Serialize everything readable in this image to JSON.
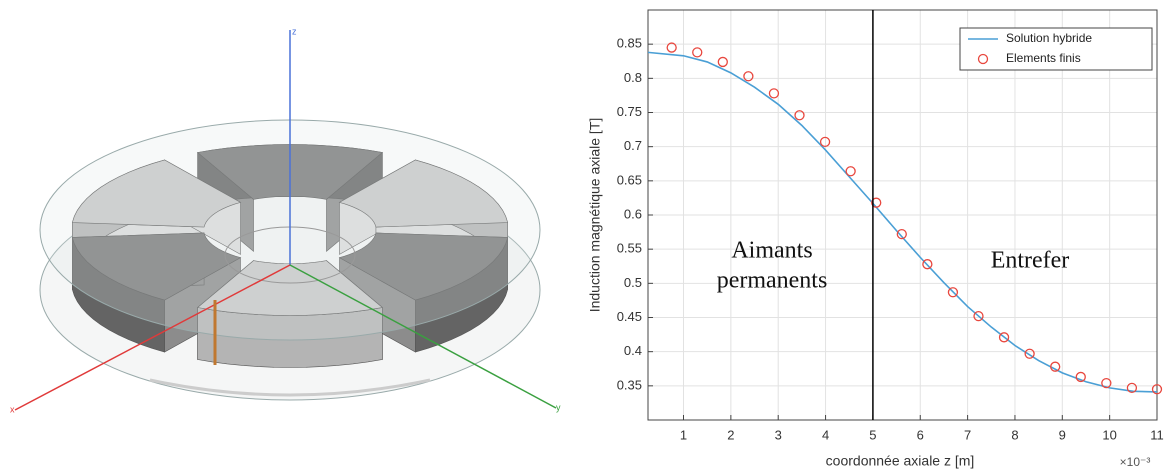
{
  "cad_view": {
    "axis_labels": [
      "z",
      "y",
      "x"
    ]
  },
  "chart_data": {
    "type": "line",
    "xlabel": "coordonnée axiale z [m]",
    "ylabel": "Induction magnétique axiale [T]",
    "x_exponent_label": "×10⁻³",
    "xlim": [
      0.25,
      11
    ],
    "xticks": [
      1,
      2,
      3,
      4,
      5,
      6,
      7,
      8,
      9,
      10,
      11
    ],
    "ylim": [
      0.3,
      0.9
    ],
    "yticks": [
      0.35,
      0.4,
      0.45,
      0.5,
      0.55,
      0.6,
      0.65,
      0.7,
      0.75,
      0.8,
      0.85
    ],
    "grid": true,
    "legend": "northeast",
    "vline": 5,
    "vline_color": "#000000",
    "annotations": [
      [
        "Aimants",
        "permanents"
      ],
      [
        "Entrefer"
      ]
    ],
    "series": [
      {
        "name": "Solution hybride",
        "type": "line",
        "color": "#4a9fd5",
        "x": [
          0.25,
          1,
          1.5,
          2,
          2.5,
          3,
          3.5,
          4,
          4.5,
          5,
          5.5,
          6,
          6.5,
          7,
          7.5,
          8,
          8.5,
          9,
          9.5,
          10,
          10.5,
          11
        ],
        "y": [
          0.838,
          0.833,
          0.824,
          0.808,
          0.787,
          0.762,
          0.731,
          0.695,
          0.656,
          0.617,
          0.577,
          0.538,
          0.501,
          0.466,
          0.436,
          0.409,
          0.387,
          0.369,
          0.356,
          0.347,
          0.342,
          0.341
        ]
      },
      {
        "name": "Elements finis",
        "type": "scatter",
        "color": "#e8473e",
        "x": [
          0.75,
          1.29,
          1.83,
          2.37,
          2.91,
          3.45,
          3.99,
          4.53,
          5.07,
          5.61,
          6.15,
          6.69,
          7.23,
          7.77,
          8.31,
          8.85,
          9.39,
          9.93,
          10.47,
          11.0
        ],
        "y": [
          0.845,
          0.838,
          0.824,
          0.803,
          0.778,
          0.746,
          0.707,
          0.664,
          0.618,
          0.572,
          0.528,
          0.487,
          0.452,
          0.421,
          0.397,
          0.378,
          0.363,
          0.354,
          0.347,
          0.345
        ]
      }
    ]
  }
}
